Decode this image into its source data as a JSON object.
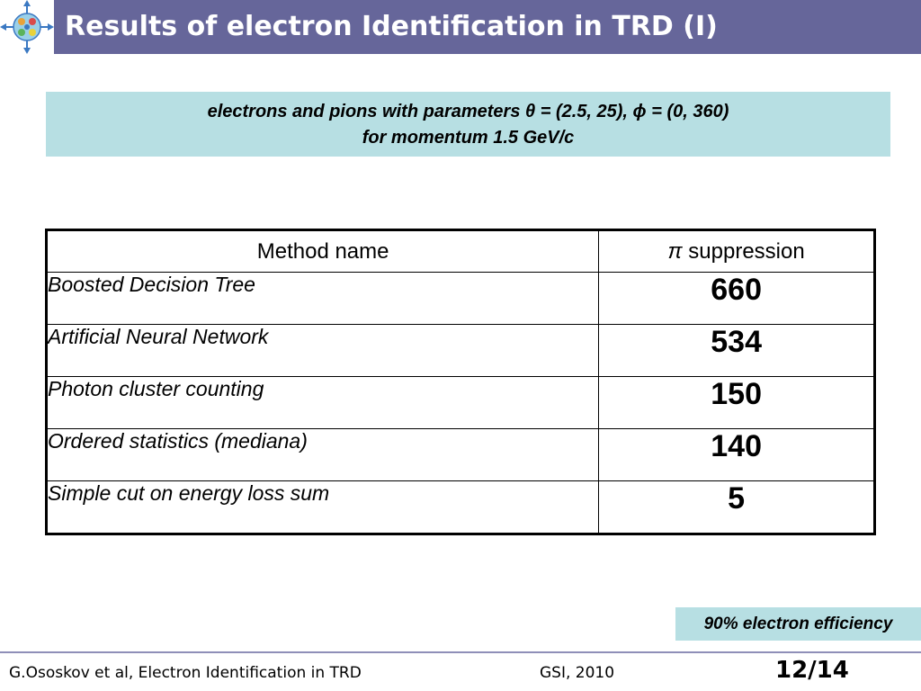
{
  "slide": {
    "title": "Results of electron Identification in TRD (I)",
    "logo_icon": "institute-logo-icon"
  },
  "info": {
    "line1": "electrons and pions with parameters θ = (2.5, 25), ϕ = (0, 360)",
    "line2": "for momentum 1.5 GeV/c"
  },
  "table": {
    "headers": {
      "method": "Method name",
      "pi_symbol": "π",
      "suppression": " suppression"
    },
    "rows": [
      {
        "method": "Boosted Decision Tree",
        "value": "660"
      },
      {
        "method": "Artificial Neural Network",
        "value": "534"
      },
      {
        "method": "Photon cluster counting",
        "value": "150"
      },
      {
        "method": "Ordered statistics (mediana)",
        "value": "140"
      },
      {
        "method": "Simple cut on energy loss sum",
        "value": "5"
      }
    ]
  },
  "note": {
    "efficiency": "90% electron efficiency"
  },
  "footer": {
    "left": "G.Ososkov et al, Electron Identification in TRD",
    "center": "GSI, 2010",
    "page": "12/14"
  },
  "colors": {
    "title_bar": "#66669a",
    "info_box": "#b7dfe3",
    "footer_rule": "#8f8fb8"
  }
}
